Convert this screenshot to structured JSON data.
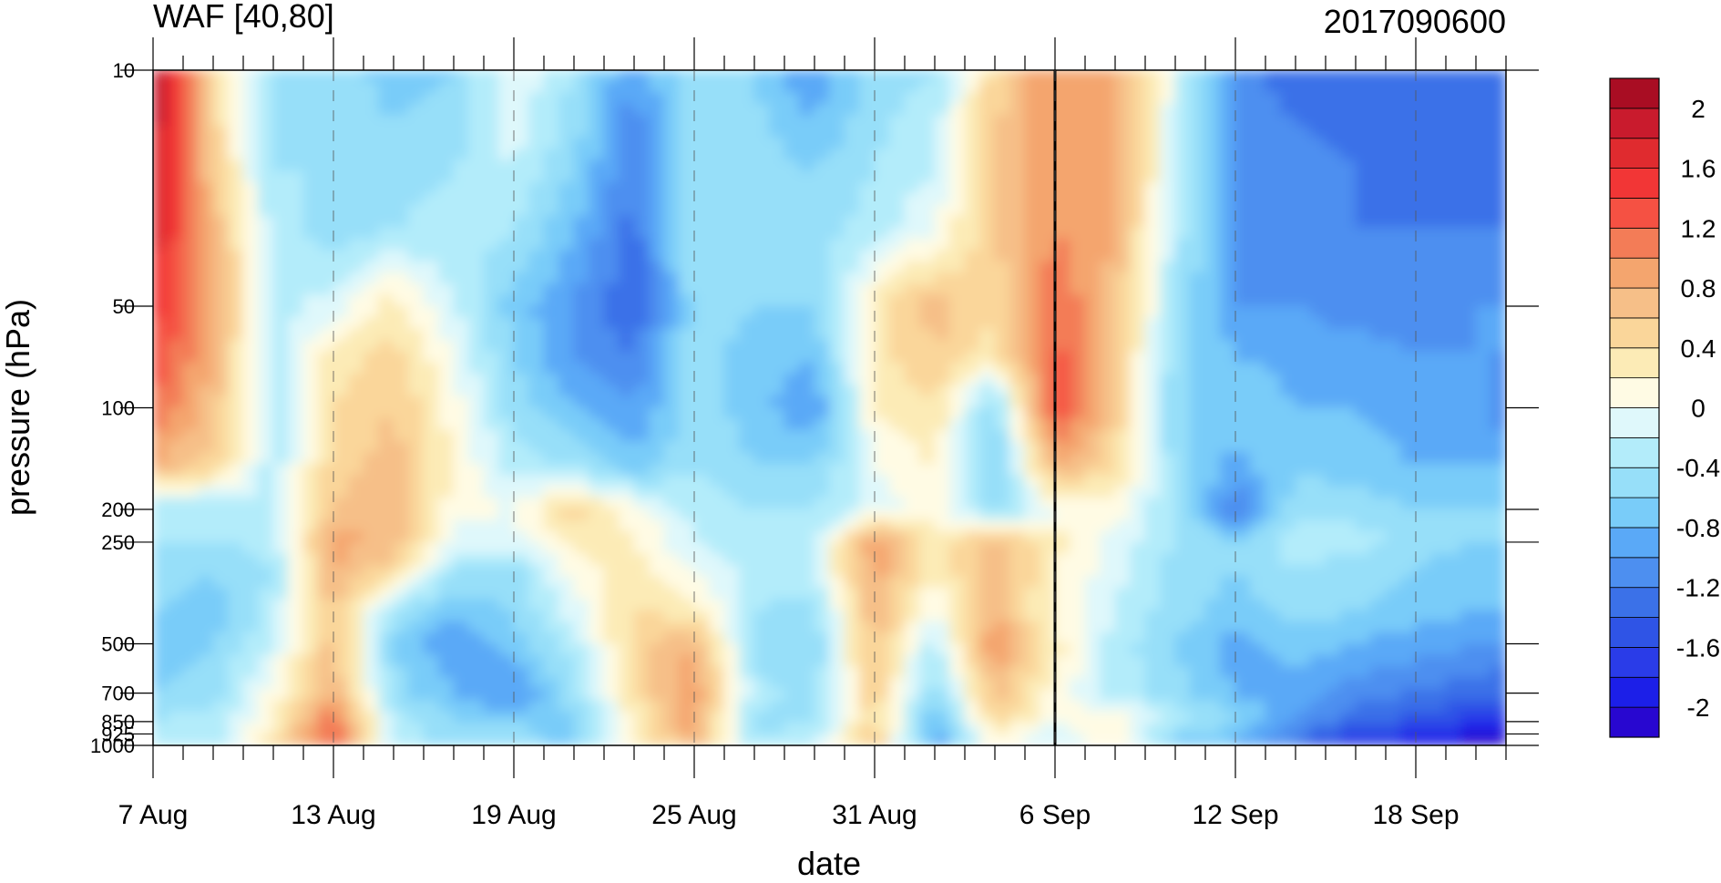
{
  "chart_data": {
    "type": "heatmap",
    "title_left": "WAF [40,80]",
    "title_right": "2017090600",
    "xlabel": "date",
    "ylabel": "pressure (hPa)",
    "x_tick_labels": [
      "7 Aug",
      "13 Aug",
      "19 Aug",
      "25 Aug",
      "31 Aug",
      "6 Sep",
      "12 Sep",
      "18 Sep"
    ],
    "x_range_days": [
      0,
      45
    ],
    "x_major_tick_days": [
      0,
      6,
      12,
      18,
      24,
      30,
      36,
      42
    ],
    "marked_date_day": 30,
    "y_scale": "log",
    "y_tick_values": [
      10,
      50,
      100,
      200,
      250,
      500,
      700,
      850,
      925,
      1000
    ],
    "y_tick_labels": [
      "10",
      "50",
      "100",
      "200",
      "250",
      "500",
      "700",
      "850",
      "925",
      "1000"
    ],
    "y_range": [
      1000,
      10
    ],
    "colorbar_levels": [
      -2.2,
      -2.0,
      -1.8,
      -1.6,
      -1.4,
      -1.2,
      -1.0,
      -0.8,
      -0.6,
      -0.4,
      -0.2,
      0.0,
      0.2,
      0.4,
      0.6,
      0.8,
      1.0,
      1.2,
      1.4,
      1.6,
      1.8,
      2.0,
      2.2
    ],
    "colorbar_colors": [
      "#2807d0",
      "#1c1fe8",
      "#2a3ce8",
      "#2f54e6",
      "#3b71e8",
      "#4d8ff0",
      "#5aa9f7",
      "#79ccf9",
      "#97dff9",
      "#b3ecfa",
      "#dff8fb",
      "#fffbe4",
      "#fcebb6",
      "#fad69a",
      "#f6bf88",
      "#f4a56e",
      "#f37c57",
      "#f55143",
      "#f23636",
      "#e02b2f",
      "#c91b2d",
      "#a90d23"
    ],
    "colorbar_tick_values": [
      -2.0,
      -1.6,
      -1.2,
      -0.8,
      -0.4,
      0.0,
      0.4,
      0.8,
      1.2,
      1.6,
      2.0
    ],
    "colorbar_tick_labels": [
      "-2",
      "-1.6",
      "-1.2",
      "-0.8",
      "-0.4",
      "0",
      "0.4",
      "0.8",
      "1.2",
      "1.6",
      "2"
    ],
    "x_days": [
      0,
      2,
      4,
      6,
      8,
      10,
      12,
      14,
      16,
      18,
      20,
      22,
      24,
      26,
      28,
      30,
      32,
      34,
      36,
      38,
      40,
      42,
      44,
      45
    ],
    "y_levels": [
      10,
      20,
      30,
      50,
      70,
      100,
      150,
      200,
      250,
      300,
      400,
      500,
      700,
      850,
      925,
      1000
    ],
    "values": [
      [
        2.1,
        0.4,
        -0.5,
        -0.5,
        -0.7,
        -0.6,
        0.0,
        -0.4,
        -1.0,
        -0.4,
        -0.6,
        -1.0,
        -0.5,
        -0.4,
        0.5,
        1.0,
        0.9,
        -0.1,
        -1.1,
        -1.3,
        -1.3,
        -1.4,
        -1.4,
        -1.4
      ],
      [
        1.9,
        0.6,
        -0.4,
        -0.4,
        -0.5,
        -0.4,
        -0.2,
        -0.6,
        -1.2,
        -0.4,
        -0.5,
        -0.6,
        -0.4,
        -0.2,
        0.6,
        1.0,
        0.9,
        -0.2,
        -1.1,
        -1.1,
        -1.2,
        -1.3,
        -1.3,
        -1.3
      ],
      [
        1.8,
        0.8,
        -0.3,
        -0.5,
        -0.4,
        -0.3,
        -0.4,
        -0.8,
        -1.3,
        -0.4,
        -0.5,
        -0.5,
        -0.3,
        0.0,
        0.6,
        1.0,
        0.8,
        -0.3,
        -1.0,
        -1.1,
        -1.2,
        -1.2,
        -1.2,
        -1.2
      ],
      [
        1.5,
        0.9,
        -0.3,
        -0.1,
        0.3,
        -0.2,
        -0.7,
        -1.0,
        -1.4,
        -0.5,
        -0.6,
        -0.6,
        0.3,
        0.7,
        0.4,
        1.2,
        0.7,
        -0.4,
        -1.0,
        -1.0,
        -1.1,
        -1.1,
        -1.0,
        -1.0
      ],
      [
        1.4,
        0.8,
        -0.3,
        0.3,
        0.5,
        0.0,
        -0.6,
        -1.0,
        -1.2,
        -0.5,
        -0.7,
        -0.8,
        0.3,
        0.6,
        0.3,
        1.3,
        0.6,
        -0.5,
        -0.8,
        -0.9,
        -0.9,
        -1.0,
        -1.0,
        -1.0
      ],
      [
        1.2,
        0.7,
        -0.3,
        0.4,
        0.6,
        0.1,
        -0.5,
        -0.8,
        -1.0,
        -0.5,
        -0.7,
        -1.0,
        0.2,
        0.4,
        -0.6,
        1.4,
        0.6,
        -0.6,
        -0.6,
        -0.8,
        -0.8,
        -0.9,
        -0.9,
        -1.2
      ],
      [
        0.8,
        0.5,
        -0.3,
        0.5,
        0.7,
        0.2,
        -0.3,
        -0.4,
        -0.7,
        -0.4,
        -0.6,
        -0.6,
        0.0,
        0.2,
        -0.7,
        0.8,
        0.4,
        -0.5,
        -0.9,
        -0.6,
        -0.7,
        -0.8,
        -0.8,
        -0.8
      ],
      [
        -0.4,
        -0.4,
        -0.3,
        0.6,
        0.8,
        0.1,
        0.0,
        0.5,
        0.1,
        -0.3,
        -0.4,
        -0.4,
        -0.1,
        0.1,
        -0.6,
        0.0,
        0.1,
        -0.4,
        -1.2,
        -0.5,
        -0.5,
        -0.6,
        -0.6,
        -0.6
      ],
      [
        -0.4,
        -0.4,
        -0.3,
        0.9,
        0.7,
        -0.1,
        -0.1,
        0.3,
        0.2,
        -0.2,
        -0.3,
        -0.2,
        1.0,
        0.3,
        0.7,
        0.3,
        -0.1,
        -0.4,
        -0.6,
        -0.3,
        -0.3,
        -0.5,
        -0.6,
        -0.6
      ],
      [
        -0.5,
        -0.6,
        -0.4,
        0.8,
        0.5,
        -0.4,
        -0.5,
        0.1,
        0.3,
        0.0,
        -0.3,
        -0.2,
        0.9,
        0.2,
        0.8,
        0.2,
        -0.1,
        -0.5,
        -0.6,
        -0.4,
        -0.5,
        -0.6,
        -0.7,
        -0.7
      ],
      [
        -0.6,
        -0.7,
        -0.3,
        0.7,
        -0.4,
        -0.7,
        -0.6,
        -0.1,
        0.4,
        0.3,
        -0.4,
        -0.5,
        0.8,
        0.0,
        0.8,
        0.1,
        -0.2,
        -0.5,
        -0.7,
        -0.5,
        -0.6,
        -0.7,
        -0.8,
        -0.8
      ],
      [
        -0.8,
        -0.6,
        -0.2,
        0.7,
        -0.6,
        -1.0,
        -0.7,
        -0.3,
        0.5,
        0.8,
        -0.5,
        -0.6,
        0.7,
        -0.3,
        1.0,
        0.3,
        -0.3,
        -0.6,
        -0.9,
        -0.7,
        -0.8,
        -0.9,
        -1.0,
        -1.0
      ],
      [
        -0.6,
        -0.5,
        0.1,
        0.8,
        -0.5,
        -0.8,
        -1.0,
        -0.5,
        0.4,
        1.0,
        -0.3,
        -0.5,
        0.6,
        -0.6,
        0.7,
        0.1,
        -0.3,
        -0.5,
        -0.8,
        -0.9,
        -1.1,
        -1.2,
        -1.3,
        -1.4
      ],
      [
        -0.4,
        -0.3,
        0.2,
        1.2,
        -0.3,
        -0.6,
        -0.7,
        -0.6,
        0.2,
        0.9,
        -0.5,
        -0.4,
        0.5,
        -0.8,
        0.5,
        0.0,
        0.2,
        -0.3,
        -0.6,
        -1.0,
        -1.3,
        -1.5,
        -1.7,
        -1.8
      ],
      [
        -0.4,
        -0.3,
        0.3,
        1.3,
        -0.3,
        -0.5,
        -0.5,
        -0.7,
        0.2,
        0.9,
        -0.4,
        -0.3,
        0.6,
        -1.0,
        0.2,
        -0.1,
        0.2,
        -0.6,
        -0.7,
        -1.2,
        -1.6,
        -1.8,
        -2.0,
        -2.1
      ],
      [
        -0.4,
        -0.3,
        0.3,
        1.3,
        -0.3,
        -0.5,
        -0.5,
        -0.7,
        0.1,
        0.8,
        -0.4,
        -0.3,
        0.6,
        -1.0,
        0.1,
        -0.1,
        0.1,
        -0.6,
        -0.8,
        -1.3,
        -1.7,
        -1.9,
        -2.1,
        -2.2
      ]
    ]
  }
}
